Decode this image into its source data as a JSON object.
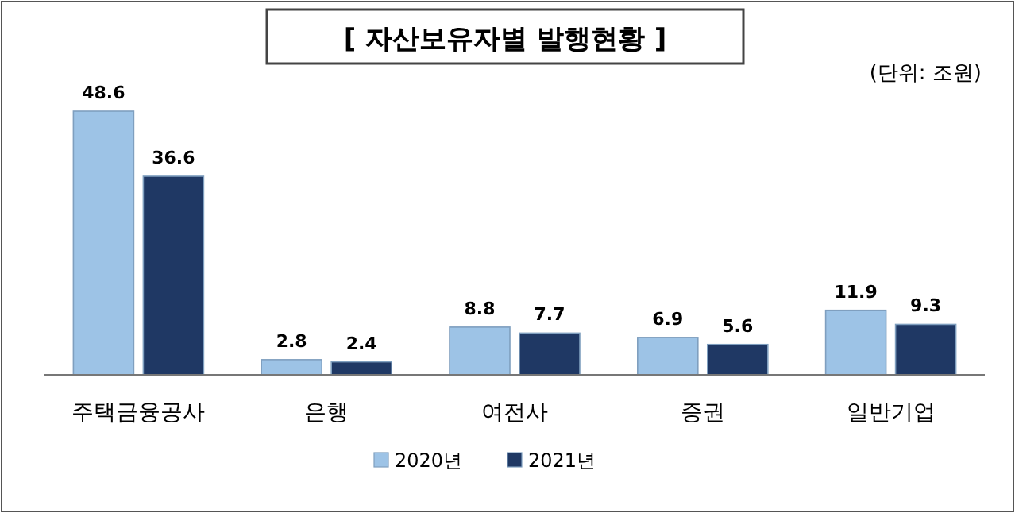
{
  "chart_data": {
    "type": "bar",
    "title": "[ 자산보유자별 발행현황 ]",
    "annotations": [
      "(단위: 조원)"
    ],
    "categories": [
      "주택금융공사",
      "은행",
      "여전사",
      "증권",
      "일반기업"
    ],
    "series": [
      {
        "name": "2020년",
        "color": "#9dc3e6",
        "values": [
          48.6,
          2.8,
          8.8,
          6.9,
          11.9
        ]
      },
      {
        "name": "2021년",
        "color": "#1f3864",
        "values": [
          36.6,
          2.4,
          7.7,
          5.6,
          9.3
        ]
      }
    ],
    "data_labels": true,
    "legend": "bottom"
  }
}
